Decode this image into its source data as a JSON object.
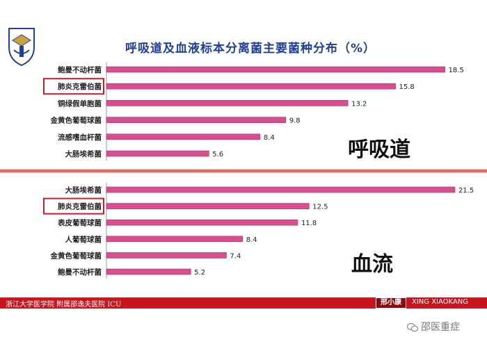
{
  "header": {
    "title": "呼吸道及血液标本分离菌主要菌种分布（%）"
  },
  "footer": {
    "institution": "浙江大学医学院 附属邵逸夫医院 ICU",
    "author_cn": "邢小康",
    "author_en": "XING XIAOKANG"
  },
  "watermark": {
    "text": "邵医重症"
  },
  "colors": {
    "bar": "#d84f8f",
    "highlight_box": "#c0202a",
    "footer": "#c8141e",
    "title": "#1f3f9c"
  },
  "chart_data": [
    {
      "type": "bar",
      "orientation": "horizontal",
      "panel_label": "呼吸道",
      "categories": [
        "鲍曼不动杆菌",
        "肺炎克雷伯菌",
        "铜绿假单胞菌",
        "金黄色葡萄球菌",
        "流感嗜血杆菌",
        "大肠埃希菌"
      ],
      "values": [
        18.5,
        15.8,
        13.2,
        9.8,
        8.4,
        5.6
      ],
      "highlighted": "肺炎克雷伯菌",
      "xlim": [
        0,
        20
      ]
    },
    {
      "type": "bar",
      "orientation": "horizontal",
      "panel_label": "血流",
      "categories": [
        "大肠埃希菌",
        "肺炎克雷伯菌",
        "表皮葡萄球菌",
        "人葡萄球菌",
        "金黄色葡萄球菌",
        "鲍曼不动杆菌"
      ],
      "values": [
        21.5,
        12.5,
        11.8,
        8.4,
        7.4,
        5.2
      ],
      "highlighted": "肺炎克雷伯菌",
      "xlim": [
        0,
        23
      ]
    }
  ]
}
